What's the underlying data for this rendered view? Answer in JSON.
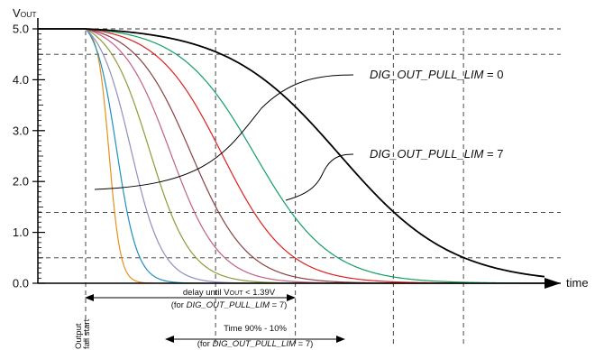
{
  "chart_data": {
    "type": "line",
    "ylabel_main": "V",
    "ylabel_sub": "OUT",
    "xlabel": "time",
    "ylim": [
      0,
      5
    ],
    "yticks": [
      "0.0",
      "1.0",
      "2.0",
      "3.0",
      "4.0",
      "5.0"
    ],
    "grid": "dashed reference lines",
    "threshold_levels": [
      4.5,
      1.39,
      0.5
    ],
    "series": [
      {
        "color": "#e8901c",
        "fall_time": 0.25,
        "width": 0.06
      },
      {
        "color": "#1f8fc0",
        "fall_time": 0.33,
        "width": 0.11
      },
      {
        "color": "#8f8fc0",
        "fall_time": 0.48,
        "width": 0.17
      },
      {
        "color": "#8f9a3a",
        "fall_time": 0.68,
        "width": 0.22
      },
      {
        "color": "#c0608a",
        "fall_time": 0.9,
        "width": 0.26
      },
      {
        "color": "#8a4040",
        "fall_time": 1.12,
        "width": 0.3
      },
      {
        "color": "#dd2020",
        "fall_time": 1.45,
        "width": 0.35
      },
      {
        "color": "#10a060",
        "fall_time": 1.8,
        "width": 0.4
      },
      {
        "color": "#000000",
        "fall_time": 2.7,
        "width": 0.6
      }
    ],
    "annotations": {
      "lim0_italic": "DIG_OUT_PULL_LIM",
      "lim0_value": " = 0",
      "lim7_italic": "DIG_OUT_PULL_LIM",
      "lim7_value": " = 7",
      "delay_pre": "delay until V",
      "delay_sub": "OUT",
      "delay_post": " < 1.39V",
      "delay_for_pre": "(for ",
      "delay_for_italic": "DIG_OUT_PULL_LIM",
      "delay_for_post": " = 7)",
      "time_label": "Time 90% - 10%",
      "time_for_pre": "(for ",
      "time_for_italic": "DIG_OUT_PULL_LIM",
      "time_for_post": " = 7)",
      "fall_start_1": "Output",
      "fall_start_2": "fall start"
    }
  }
}
